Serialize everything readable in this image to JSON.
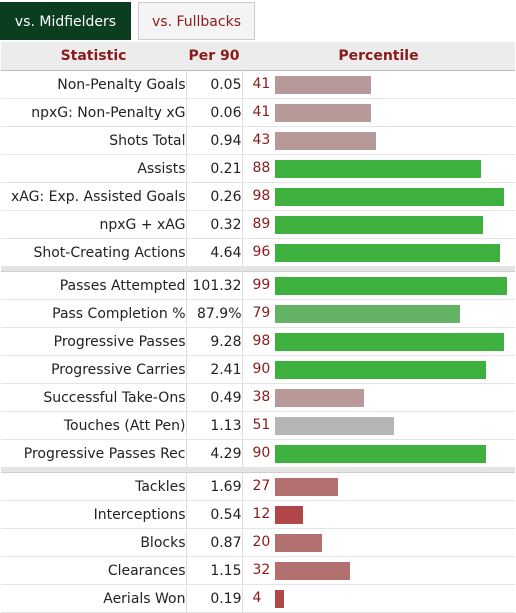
{
  "tabs": [
    {
      "label": "vs. Midfielders",
      "active": true
    },
    {
      "label": "vs. Fullbacks",
      "active": false
    }
  ],
  "columns": {
    "statistic": "Statistic",
    "per90": "Per 90",
    "percentile": "Percentile"
  },
  "colors": {
    "high": "#3eb03e",
    "high2": "#64b264",
    "mid": "#b5b5b5",
    "low": "#b89999",
    "low2": "#b27070",
    "low3": "#b04848",
    "accent": "#8b1a1a",
    "active_tab": "#0b3d1f"
  },
  "groups": [
    [
      {
        "stat": "Non-Penalty Goals",
        "per90": "0.05",
        "percentile": 41,
        "color": "low"
      },
      {
        "stat": "npxG: Non-Penalty xG",
        "per90": "0.06",
        "percentile": 41,
        "color": "low"
      },
      {
        "stat": "Shots Total",
        "per90": "0.94",
        "percentile": 43,
        "color": "low"
      },
      {
        "stat": "Assists",
        "per90": "0.21",
        "percentile": 88,
        "color": "high"
      },
      {
        "stat": "xAG: Exp. Assisted Goals",
        "per90": "0.26",
        "percentile": 98,
        "color": "high"
      },
      {
        "stat": "npxG + xAG",
        "per90": "0.32",
        "percentile": 89,
        "color": "high"
      },
      {
        "stat": "Shot-Creating Actions",
        "per90": "4.64",
        "percentile": 96,
        "color": "high"
      }
    ],
    [
      {
        "stat": "Passes Attempted",
        "per90": "101.32",
        "percentile": 99,
        "color": "high"
      },
      {
        "stat": "Pass Completion %",
        "per90": "87.9%",
        "percentile": 79,
        "color": "high2"
      },
      {
        "stat": "Progressive Passes",
        "per90": "9.28",
        "percentile": 98,
        "color": "high"
      },
      {
        "stat": "Progressive Carries",
        "per90": "2.41",
        "percentile": 90,
        "color": "high"
      },
      {
        "stat": "Successful Take-Ons",
        "per90": "0.49",
        "percentile": 38,
        "color": "low"
      },
      {
        "stat": "Touches (Att Pen)",
        "per90": "1.13",
        "percentile": 51,
        "color": "mid"
      },
      {
        "stat": "Progressive Passes Rec",
        "per90": "4.29",
        "percentile": 90,
        "color": "high"
      }
    ],
    [
      {
        "stat": "Tackles",
        "per90": "1.69",
        "percentile": 27,
        "color": "low2"
      },
      {
        "stat": "Interceptions",
        "per90": "0.54",
        "percentile": 12,
        "color": "low3"
      },
      {
        "stat": "Blocks",
        "per90": "0.87",
        "percentile": 20,
        "color": "low2"
      },
      {
        "stat": "Clearances",
        "per90": "1.15",
        "percentile": 32,
        "color": "low2"
      },
      {
        "stat": "Aerials Won",
        "per90": "0.19",
        "percentile": 4,
        "color": "low3"
      }
    ]
  ]
}
